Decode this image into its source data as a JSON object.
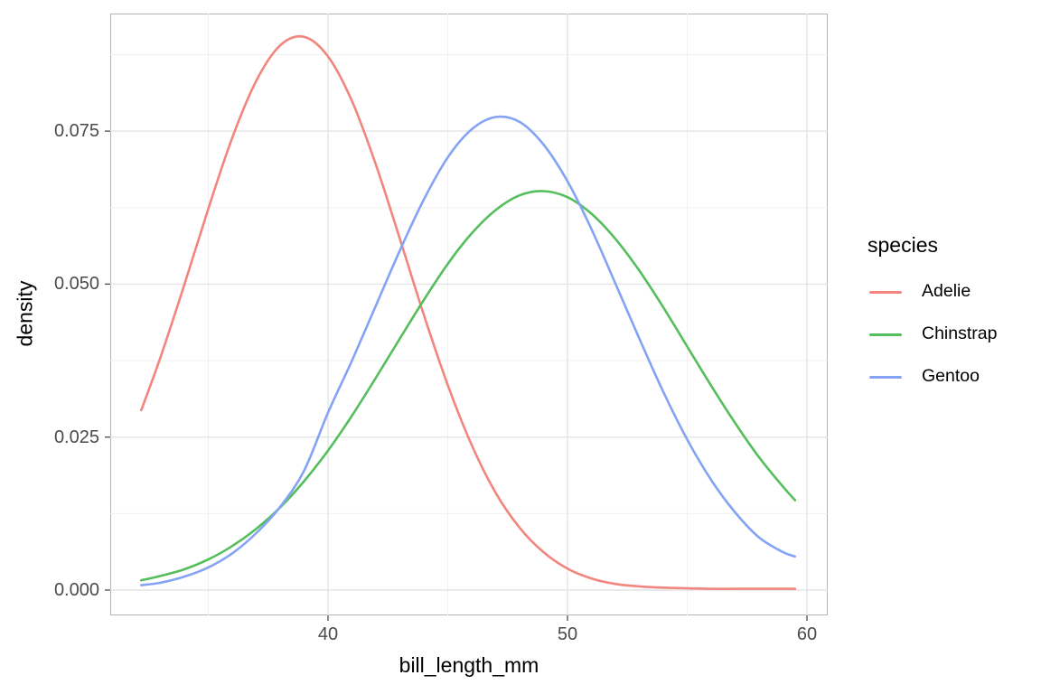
{
  "figure": {
    "background_color": "#ffffff",
    "panel": {
      "border_color": "#b4b4b4",
      "grid_major_color": "#e4e4e4",
      "grid_minor_color": "#f0f0f0"
    },
    "x_axis": {
      "title": "bill_length_mm",
      "ticks": [
        "40",
        "50",
        "60"
      ],
      "tick_values": [
        40,
        50,
        60
      ],
      "minor_values": [
        35,
        45,
        55
      ]
    },
    "y_axis": {
      "title": "density",
      "ticks": [
        "0.000",
        "0.025",
        "0.050",
        "0.075"
      ],
      "tick_values": [
        0,
        0.025,
        0.05,
        0.075
      ],
      "minor_values": [
        0.0125,
        0.0375,
        0.0625,
        0.0875
      ]
    },
    "legend": {
      "title": "species",
      "position": "right"
    }
  },
  "chart_data": {
    "type": "line",
    "subtype": "kernel-density",
    "title": "",
    "xlabel": "bill_length_mm",
    "ylabel": "density",
    "xlim": [
      30.9,
      60.9
    ],
    "ylim": [
      0,
      0.0944
    ],
    "grid": true,
    "legend_position": "right",
    "x": [
      32.2,
      33,
      34,
      35,
      36,
      37,
      38,
      39,
      40,
      41,
      42,
      43,
      44,
      45,
      46,
      47,
      48,
      49,
      50,
      51,
      52,
      53,
      54,
      55,
      56,
      57,
      58,
      59,
      59.5
    ],
    "series": [
      {
        "name": "Adelie",
        "color": "#f2857d",
        "peak_x": 38.8,
        "peak_density": 0.0905,
        "values": [
          0.0294,
          0.038,
          0.0499,
          0.0623,
          0.0739,
          0.0832,
          0.089,
          0.0904,
          0.0872,
          0.0799,
          0.0695,
          0.0574,
          0.045,
          0.0335,
          0.0237,
          0.0159,
          0.0102,
          0.0062,
          0.0035,
          0.0019,
          0.001,
          0.0006,
          0.0004,
          0.0003,
          0.0002,
          0.0002,
          0.0002,
          0.0002,
          0.0002
        ]
      },
      {
        "name": "Chinstrap",
        "color": "#54be5d",
        "peak_x": 48.9,
        "peak_density": 0.0652,
        "values": [
          0.0016,
          0.0023,
          0.0034,
          0.005,
          0.0072,
          0.01,
          0.0135,
          0.0178,
          0.0228,
          0.0285,
          0.0347,
          0.0411,
          0.0474,
          0.0533,
          0.0583,
          0.0621,
          0.0645,
          0.0652,
          0.0642,
          0.0615,
          0.0574,
          0.0522,
          0.0462,
          0.0398,
          0.0334,
          0.0273,
          0.0217,
          0.0169,
          0.0147
        ]
      },
      {
        "name": "Gentoo",
        "color": "#84a3f5",
        "peak_x": 47.2,
        "peak_density": 0.0774,
        "values": [
          0.0008,
          0.0012,
          0.0022,
          0.0037,
          0.006,
          0.0093,
          0.0136,
          0.0195,
          0.029,
          0.0375,
          0.0465,
          0.0555,
          0.0638,
          0.0707,
          0.0753,
          0.0773,
          0.0765,
          0.0728,
          0.0668,
          0.059,
          0.0501,
          0.0411,
          0.0324,
          0.0246,
          0.018,
          0.0127,
          0.0086,
          0.0062,
          0.0055
        ]
      }
    ]
  }
}
